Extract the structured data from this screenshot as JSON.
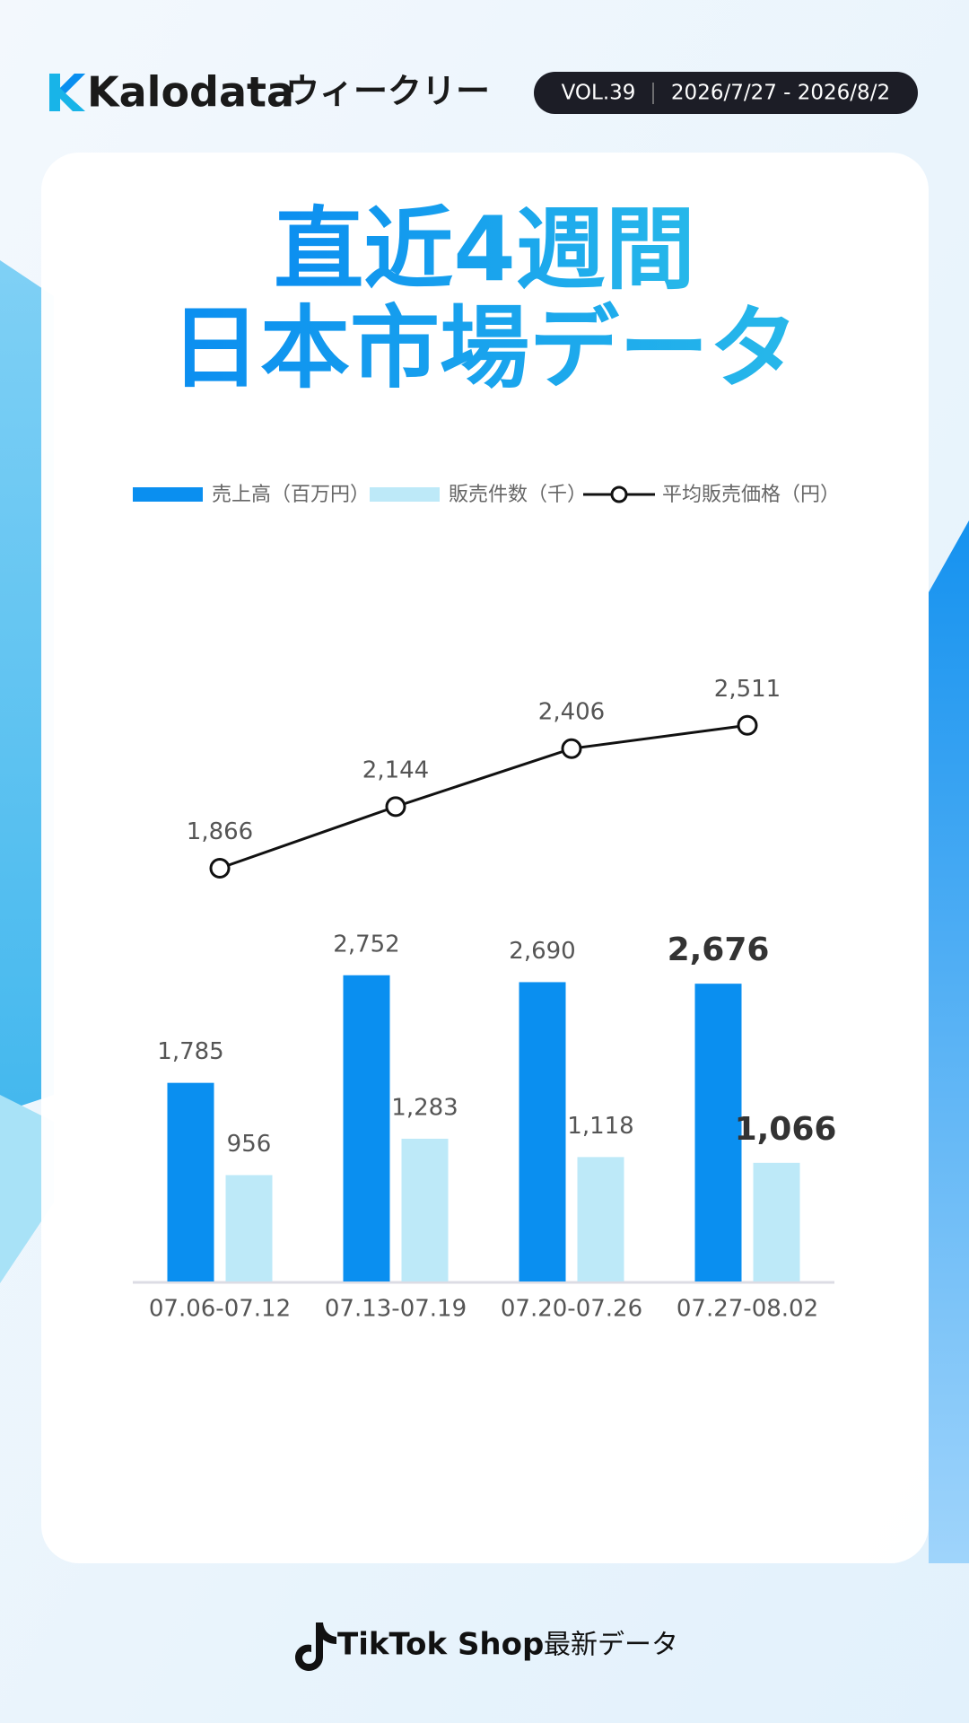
{
  "header": {
    "brand": "Kalodata",
    "subtitle": "ウィークリー",
    "volume": "VOL.39",
    "period": "2026/7/27 - 2026/8/2"
  },
  "chart_data": {
    "type": "bar_line",
    "title": [
      "直近4週間",
      "日本市場データ"
    ],
    "categories": [
      "07.06-07.12",
      "07.13-07.19",
      "07.20-07.26",
      "07.27-08.02"
    ],
    "series": [
      {
        "name": "売上高（百万円）",
        "type": "bar",
        "color": "#0a8ff0",
        "values": [
          1785,
          2752,
          2690,
          2676
        ],
        "value_labels": [
          "1,785",
          "2,752",
          "2,690",
          "2,676"
        ]
      },
      {
        "name": "販売件数（千）",
        "type": "bar",
        "color": "#bde9f8",
        "values": [
          956,
          1283,
          1118,
          1066
        ],
        "value_labels": [
          "956",
          "1,283",
          "1,118",
          "1,066"
        ]
      },
      {
        "name": "平均販売価格（円）",
        "type": "line",
        "color": "#111111",
        "values": [
          1866,
          2144,
          2406,
          2511
        ],
        "value_labels": [
          "1,866",
          "2,144",
          "2,406",
          "2,511"
        ]
      }
    ]
  },
  "footer": {
    "brand": "TikTok Shop",
    "text": "最新データ"
  }
}
